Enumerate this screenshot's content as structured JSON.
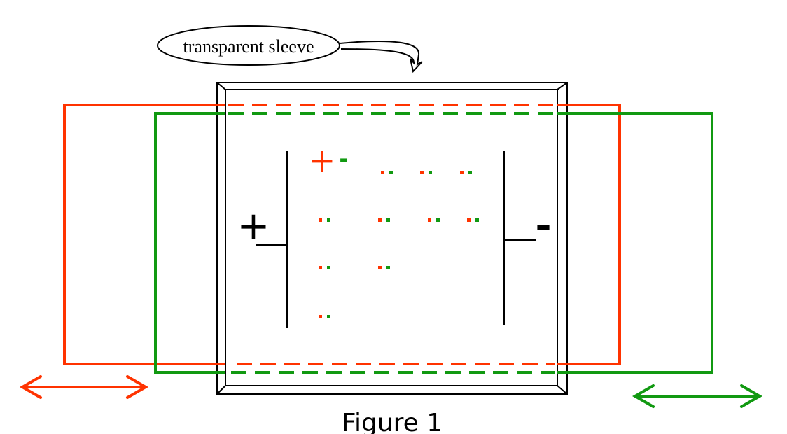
{
  "callout": {
    "text": "transparent sleeve"
  },
  "caption": {
    "text": "Figure 1"
  },
  "terminals": {
    "left": "+",
    "right": "-"
  },
  "charge_labels": {
    "plus": "+",
    "minus": "-"
  },
  "colors": {
    "red": "#ff3300",
    "green": "#119911",
    "black": "#000000"
  },
  "arrows": {
    "left": {
      "color": "red",
      "direction": "both"
    },
    "right": {
      "color": "green",
      "direction": "both"
    }
  }
}
